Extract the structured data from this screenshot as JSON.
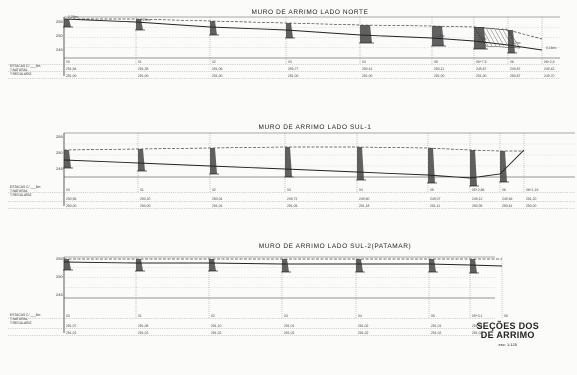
{
  "sheet_title": [
    "SEÇÕES DOS",
    "DE ARRIMO"
  ],
  "scale": "esc: 1:125",
  "panels": [
    {
      "title": "MURO DE ARRIMO LADO NORTE",
      "y_ticks": [
        "255",
        "250",
        "245"
      ],
      "legend": [
        "ESTACAS C/ ___5m",
        "T.NATURAL",
        "T.REGULARIZ."
      ],
      "stations": [
        "00",
        "01",
        "02",
        "03",
        "04",
        "05",
        "05+7,5",
        "06",
        "06+2,5"
      ],
      "row1": [
        "251,54",
        "251,39",
        "251,06",
        "250,77",
        "250,41",
        "250,11",
        "249,87",
        "249,87",
        "249,42"
      ],
      "row2": [
        "251,00",
        "251,00",
        "251,00",
        "251,00",
        "251,00",
        "251,00",
        "251,00",
        "250,87",
        "249,70"
      ],
      "heights": [
        "2,28m²",
        "2,20m²",
        "",
        "",
        "",
        "1,2m²",
        "1,9m²",
        "0,7m²",
        "0,16m²"
      ]
    },
    {
      "title": "MURO DE ARRIMO LADO SUL-1",
      "y_ticks": [
        "255",
        "250",
        "245"
      ],
      "legend": [
        "ESTACAS C/ ___5m",
        "T.NATURAL",
        "T.REGULARIZ."
      ],
      "stations": [
        "00",
        "01",
        "02",
        "03",
        "04",
        "05",
        "05+2,86",
        "06",
        "06+1,15"
      ],
      "row1": [
        "250,56",
        "250,20",
        "250,04",
        "249,72",
        "249,60",
        "249,07",
        "249,12",
        "249,46",
        "251,20"
      ],
      "row2": [
        "250,00",
        "250,00",
        "251,04",
        "251,05",
        "251,18",
        "251,11",
        "250,95",
        "250,61",
        "250,00"
      ],
      "heights": [
        "",
        "",
        "",
        "",
        "",
        "",
        "",
        "",
        ""
      ]
    },
    {
      "title": "MURO DE ARRIMO LADO SUL-2(PATAMAR)",
      "y_ticks": [
        "255",
        "250",
        "245"
      ],
      "legend": [
        "ESTACAS C/ ___5m",
        "T.NATURAL",
        "T.REGULARIZ."
      ],
      "stations": [
        "00",
        "01",
        "02",
        "03",
        "04",
        "05",
        "05+3,1",
        "06"
      ],
      "row1": [
        "251,07",
        "251,08",
        "251,10",
        "251,01",
        "251,02",
        "251,01",
        "251,01",
        ""
      ],
      "row2": [
        "251,02",
        "251,02",
        "251,02",
        "251,02",
        "251,02",
        "251,02",
        "251,02",
        ""
      ],
      "heights": [
        "",
        "",
        "",
        "",
        "",
        "",
        "",
        ""
      ]
    }
  ]
}
